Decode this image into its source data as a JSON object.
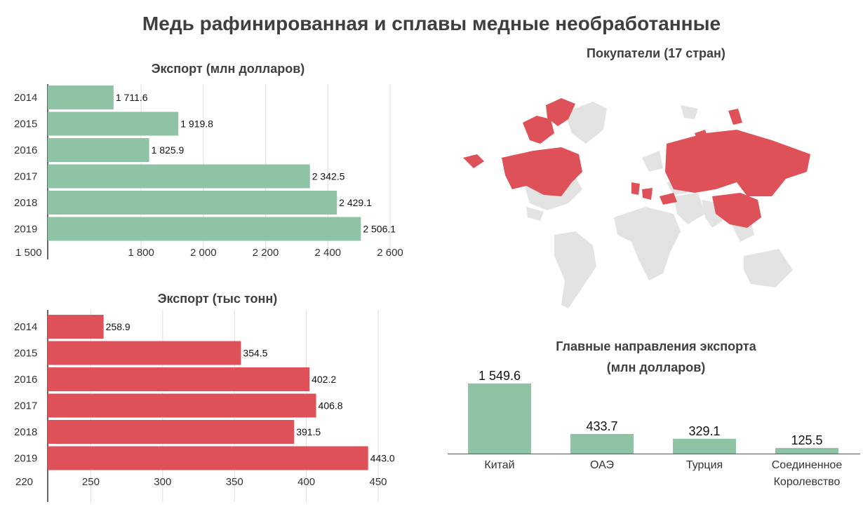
{
  "title": "Медь рафинированная и сплавы медные необработанные",
  "colors": {
    "green": "#8fc3a5",
    "red": "#df5158",
    "map_gray": "#e3e3e3",
    "axis": "#333333"
  },
  "charts": {
    "export_value": {
      "subtitle": "Экспорт (млн долларов)"
    },
    "export_volume": {
      "subtitle": "Экспорт (тыс тонн)"
    },
    "map": {
      "subtitle": "Покупатели (17 стран)"
    },
    "destinations": {
      "subtitle_line1": "Главные направления экспорта",
      "subtitle_line2": "(млн долларов)"
    }
  },
  "chart_data": [
    {
      "id": "export_value",
      "type": "bar",
      "orientation": "horizontal",
      "title": "Экспорт (млн долларов)",
      "categories": [
        "2014",
        "2015",
        "2016",
        "2017",
        "2018",
        "2019"
      ],
      "values": [
        1711.6,
        1919.8,
        1825.9,
        2342.5,
        2429.1,
        2506.1
      ],
      "value_labels": [
        "1 711.6",
        "1 919.8",
        "1 825.9",
        "2 342.5",
        "2 429.1",
        "2 506.1"
      ],
      "xlim": [
        1500,
        2600
      ],
      "ticks": [
        1500,
        1800,
        2000,
        2200,
        2400,
        2600
      ],
      "tick_labels": [
        "1 500",
        "1 800",
        "2 000",
        "2 200",
        "2 400",
        "2 600"
      ],
      "color": "#8fc3a5",
      "grid": true
    },
    {
      "id": "export_volume",
      "type": "bar",
      "orientation": "horizontal",
      "title": "Экспорт (тыс тонн)",
      "categories": [
        "2014",
        "2015",
        "2016",
        "2017",
        "2018",
        "2019"
      ],
      "values": [
        258.9,
        354.5,
        402.2,
        406.8,
        391.5,
        443.0
      ],
      "value_labels": [
        "258.9",
        "354.5",
        "402.2",
        "406.8",
        "391.5",
        "443.0"
      ],
      "xlim": [
        220,
        450
      ],
      "ticks": [
        220,
        250,
        300,
        350,
        400,
        450
      ],
      "tick_labels": [
        "220",
        "250",
        "300",
        "350",
        "400",
        "450"
      ],
      "color": "#df5158",
      "grid": true
    },
    {
      "id": "destinations",
      "type": "bar",
      "orientation": "vertical",
      "title": "Главные направления экспорта (млн долларов)",
      "categories": [
        "Китай",
        "ОАЭ",
        "Турция",
        "Соединенное Королевство"
      ],
      "category_lines": [
        [
          "Китай"
        ],
        [
          "ОАЭ"
        ],
        [
          "Турция"
        ],
        [
          "Соединенное",
          "Королевство"
        ]
      ],
      "values": [
        1549.6,
        433.7,
        329.1,
        125.5
      ],
      "value_labels": [
        "1 549.6",
        "433.7",
        "329.1",
        "125.5"
      ],
      "ylim": [
        0,
        1549.6
      ],
      "color": "#8fc3a5"
    }
  ]
}
